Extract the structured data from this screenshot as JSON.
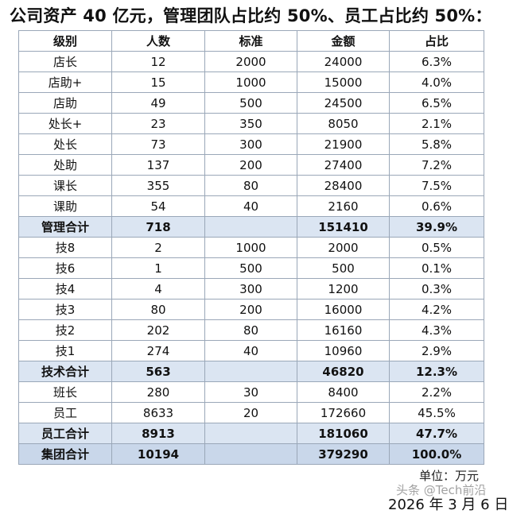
{
  "heading": "公司资产 40 亿元，管理团队占比约 50%、员工占比约 50%：",
  "columns": [
    "级别",
    "人数",
    "标准",
    "金额",
    "占比"
  ],
  "rows": [
    {
      "type": "data",
      "cells": [
        "店长",
        "12",
        "2000",
        "24000",
        "6.3%"
      ]
    },
    {
      "type": "data",
      "cells": [
        "店助+",
        "15",
        "1000",
        "15000",
        "4.0%"
      ]
    },
    {
      "type": "data",
      "cells": [
        "店助",
        "49",
        "500",
        "24500",
        "6.5%"
      ]
    },
    {
      "type": "data",
      "cells": [
        "处长+",
        "23",
        "350",
        "8050",
        "2.1%"
      ]
    },
    {
      "type": "data",
      "cells": [
        "处长",
        "73",
        "300",
        "21900",
        "5.8%"
      ]
    },
    {
      "type": "data",
      "cells": [
        "处助",
        "137",
        "200",
        "27400",
        "7.2%"
      ]
    },
    {
      "type": "data",
      "cells": [
        "课长",
        "355",
        "80",
        "28400",
        "7.5%"
      ]
    },
    {
      "type": "data",
      "cells": [
        "课助",
        "54",
        "40",
        "2160",
        "0.6%"
      ]
    },
    {
      "type": "sub",
      "cells": [
        "管理合计",
        "718",
        "",
        "151410",
        "39.9%"
      ]
    },
    {
      "type": "data",
      "cells": [
        "技8",
        "2",
        "1000",
        "2000",
        "0.5%"
      ]
    },
    {
      "type": "data",
      "cells": [
        "技6",
        "1",
        "500",
        "500",
        "0.1%"
      ]
    },
    {
      "type": "data",
      "cells": [
        "技4",
        "4",
        "300",
        "1200",
        "0.3%"
      ]
    },
    {
      "type": "data",
      "cells": [
        "技3",
        "80",
        "200",
        "16000",
        "4.2%"
      ]
    },
    {
      "type": "data",
      "cells": [
        "技2",
        "202",
        "80",
        "16160",
        "4.3%"
      ]
    },
    {
      "type": "data",
      "cells": [
        "技1",
        "274",
        "40",
        "10960",
        "2.9%"
      ]
    },
    {
      "type": "sub",
      "cells": [
        "技术合计",
        "563",
        "",
        "46820",
        "12.3%"
      ]
    },
    {
      "type": "data",
      "cells": [
        "班长",
        "280",
        "30",
        "8400",
        "2.2%"
      ]
    },
    {
      "type": "data",
      "cells": [
        "员工",
        "8633",
        "20",
        "172660",
        "45.5%"
      ]
    },
    {
      "type": "sub",
      "cells": [
        "员工合计",
        "8913",
        "",
        "181060",
        "47.7%"
      ]
    },
    {
      "type": "total",
      "cells": [
        "集团合计",
        "10194",
        "",
        "379290",
        "100.0%"
      ]
    }
  ],
  "unit_note": "单位：万元",
  "watermark": "头条 @Tech前沿",
  "date": "2026 年 3 月 6 日"
}
